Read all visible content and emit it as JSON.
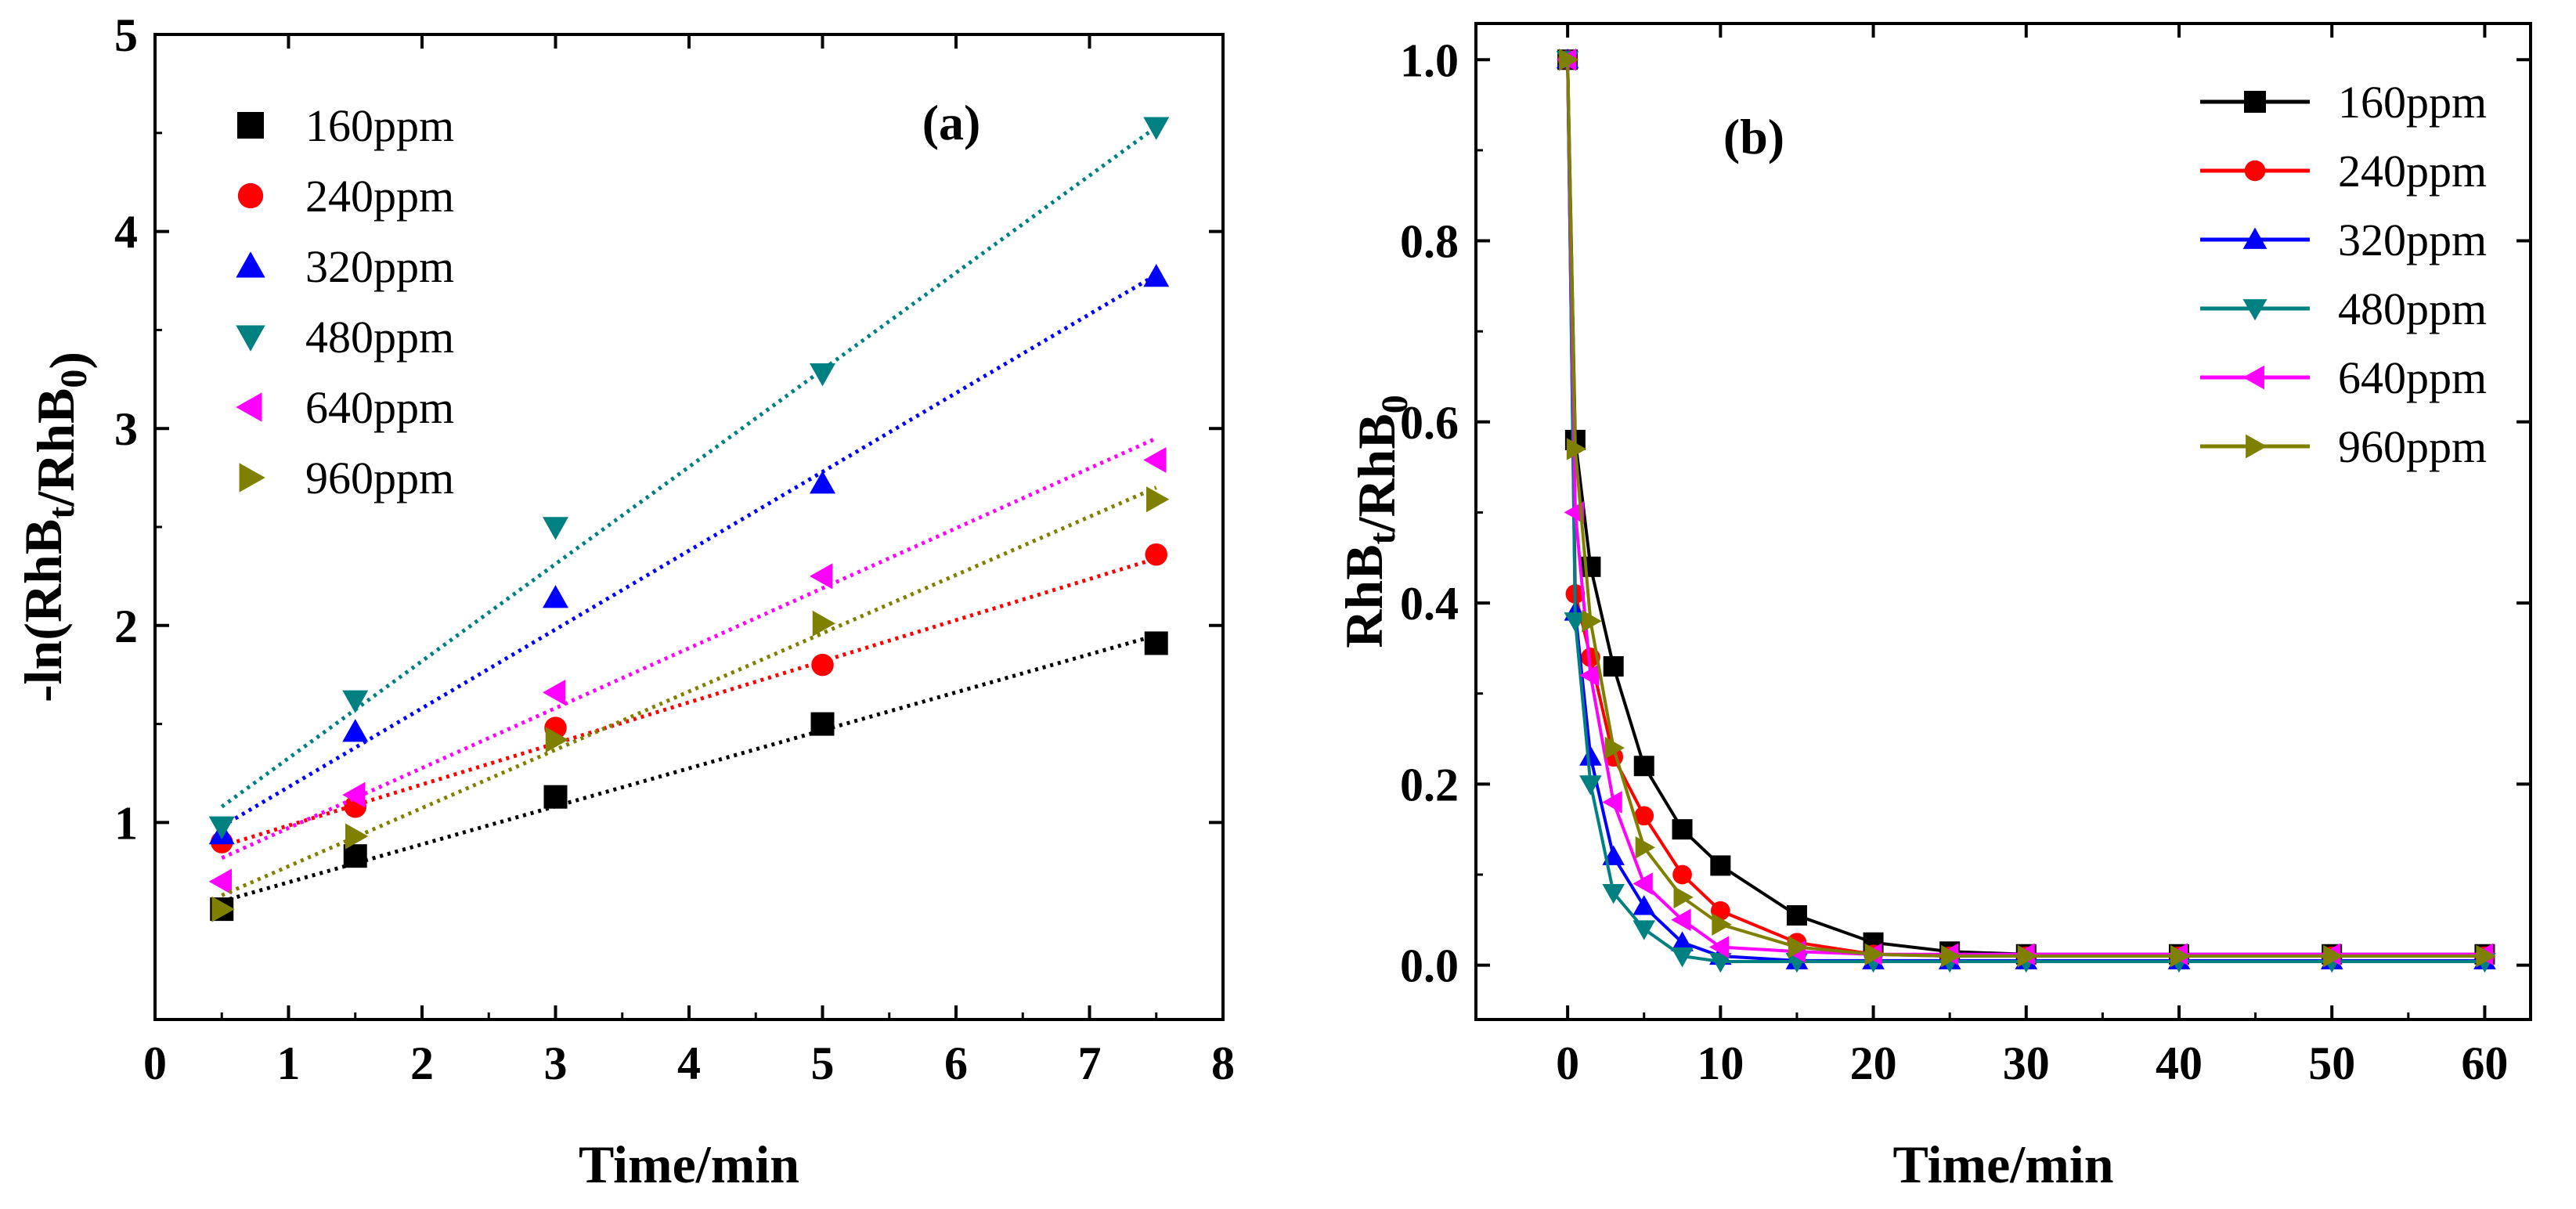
{
  "colors": {
    "160ppm": "#000000",
    "240ppm": "#ff0000",
    "320ppm": "#0000ff",
    "480ppm": "#008080",
    "640ppm": "#ff00ff",
    "960ppm": "#808000"
  },
  "chart_data": [
    {
      "id": "a",
      "type": "scatter",
      "panel_label": "(a)",
      "xlabel": "Time/min",
      "ylabel": "-ln(RhB",
      "ylabel_sub1": "t",
      "ylabel_mid": "/RhB",
      "ylabel_sub2": "0",
      "ylabel_end": ")",
      "xlim": [
        0,
        8
      ],
      "ylim": [
        0,
        5
      ],
      "xticks": [
        0,
        1,
        2,
        3,
        4,
        5,
        6,
        7,
        8
      ],
      "yticks": [
        1,
        2,
        3,
        4,
        5
      ],
      "x": [
        0.5,
        1.5,
        3,
        5,
        7.5
      ],
      "legend_position": "top-left",
      "series": [
        {
          "name": "160ppm",
          "marker": "square",
          "values": [
            0.56,
            0.83,
            1.13,
            1.5,
            1.91
          ],
          "fit": [
            0.6,
            1.95
          ]
        },
        {
          "name": "240ppm",
          "marker": "circle",
          "values": [
            0.9,
            1.08,
            1.48,
            1.8,
            2.36
          ],
          "fit": [
            0.88,
            2.34
          ]
        },
        {
          "name": "320ppm",
          "marker": "triangle-up",
          "values": [
            0.94,
            1.46,
            2.14,
            2.72,
            3.77
          ],
          "fit": [
            0.98,
            3.78
          ]
        },
        {
          "name": "480ppm",
          "marker": "triangle-down",
          "values": [
            0.98,
            1.62,
            2.5,
            3.28,
            4.53
          ],
          "fit": [
            1.08,
            4.53
          ]
        },
        {
          "name": "640ppm",
          "marker": "triangle-left",
          "values": [
            0.7,
            1.14,
            1.66,
            2.25,
            2.84
          ],
          "fit": [
            0.82,
            2.95
          ]
        },
        {
          "name": "960ppm",
          "marker": "triangle-right",
          "values": [
            0.56,
            0.93,
            1.42,
            2.01,
            2.64
          ],
          "fit": [
            0.63,
            2.7
          ]
        }
      ]
    },
    {
      "id": "b",
      "type": "line",
      "panel_label": "(b)",
      "xlabel": "Time/min",
      "ylabel": "RhB",
      "ylabel_sub1": "t",
      "ylabel_mid": "/RhB",
      "ylabel_sub2": "0",
      "ylabel_end": "",
      "xlim": [
        -6,
        63
      ],
      "ylim": [
        -0.06,
        1.04
      ],
      "xticks": [
        0,
        10,
        20,
        30,
        40,
        50,
        60
      ],
      "yticks": [
        0.0,
        0.2,
        0.4,
        0.6,
        0.8,
        1.0
      ],
      "ytick_labels": [
        "0.0",
        "0.2",
        "0.4",
        "0.6",
        "0.8",
        "1.0"
      ],
      "x": [
        0,
        0.5,
        1.5,
        3,
        5,
        7.5,
        10,
        15,
        20,
        25,
        30,
        40,
        50,
        60
      ],
      "legend_position": "top-right",
      "series": [
        {
          "name": "160ppm",
          "marker": "square",
          "values": [
            1.0,
            0.58,
            0.44,
            0.33,
            0.22,
            0.15,
            0.11,
            0.055,
            0.025,
            0.015,
            0.012,
            0.012,
            0.012,
            0.012
          ]
        },
        {
          "name": "240ppm",
          "marker": "circle",
          "values": [
            1.0,
            0.41,
            0.34,
            0.23,
            0.165,
            0.1,
            0.06,
            0.025,
            0.012,
            0.01,
            0.01,
            0.01,
            0.01,
            0.01
          ]
        },
        {
          "name": "320ppm",
          "marker": "triangle-up",
          "values": [
            1.0,
            0.39,
            0.23,
            0.12,
            0.065,
            0.025,
            0.01,
            0.005,
            0.005,
            0.005,
            0.005,
            0.005,
            0.005,
            0.005
          ]
        },
        {
          "name": "480ppm",
          "marker": "triangle-down",
          "values": [
            1.0,
            0.38,
            0.2,
            0.08,
            0.04,
            0.01,
            0.004,
            0.004,
            0.004,
            0.004,
            0.004,
            0.004,
            0.004,
            0.004
          ]
        },
        {
          "name": "640ppm",
          "marker": "triangle-left",
          "values": [
            1.0,
            0.5,
            0.32,
            0.18,
            0.09,
            0.05,
            0.02,
            0.015,
            0.012,
            0.012,
            0.012,
            0.012,
            0.012,
            0.012
          ]
        },
        {
          "name": "960ppm",
          "marker": "triangle-right",
          "values": [
            1.0,
            0.57,
            0.38,
            0.24,
            0.13,
            0.075,
            0.045,
            0.02,
            0.012,
            0.01,
            0.01,
            0.01,
            0.01,
            0.01
          ]
        }
      ]
    }
  ]
}
